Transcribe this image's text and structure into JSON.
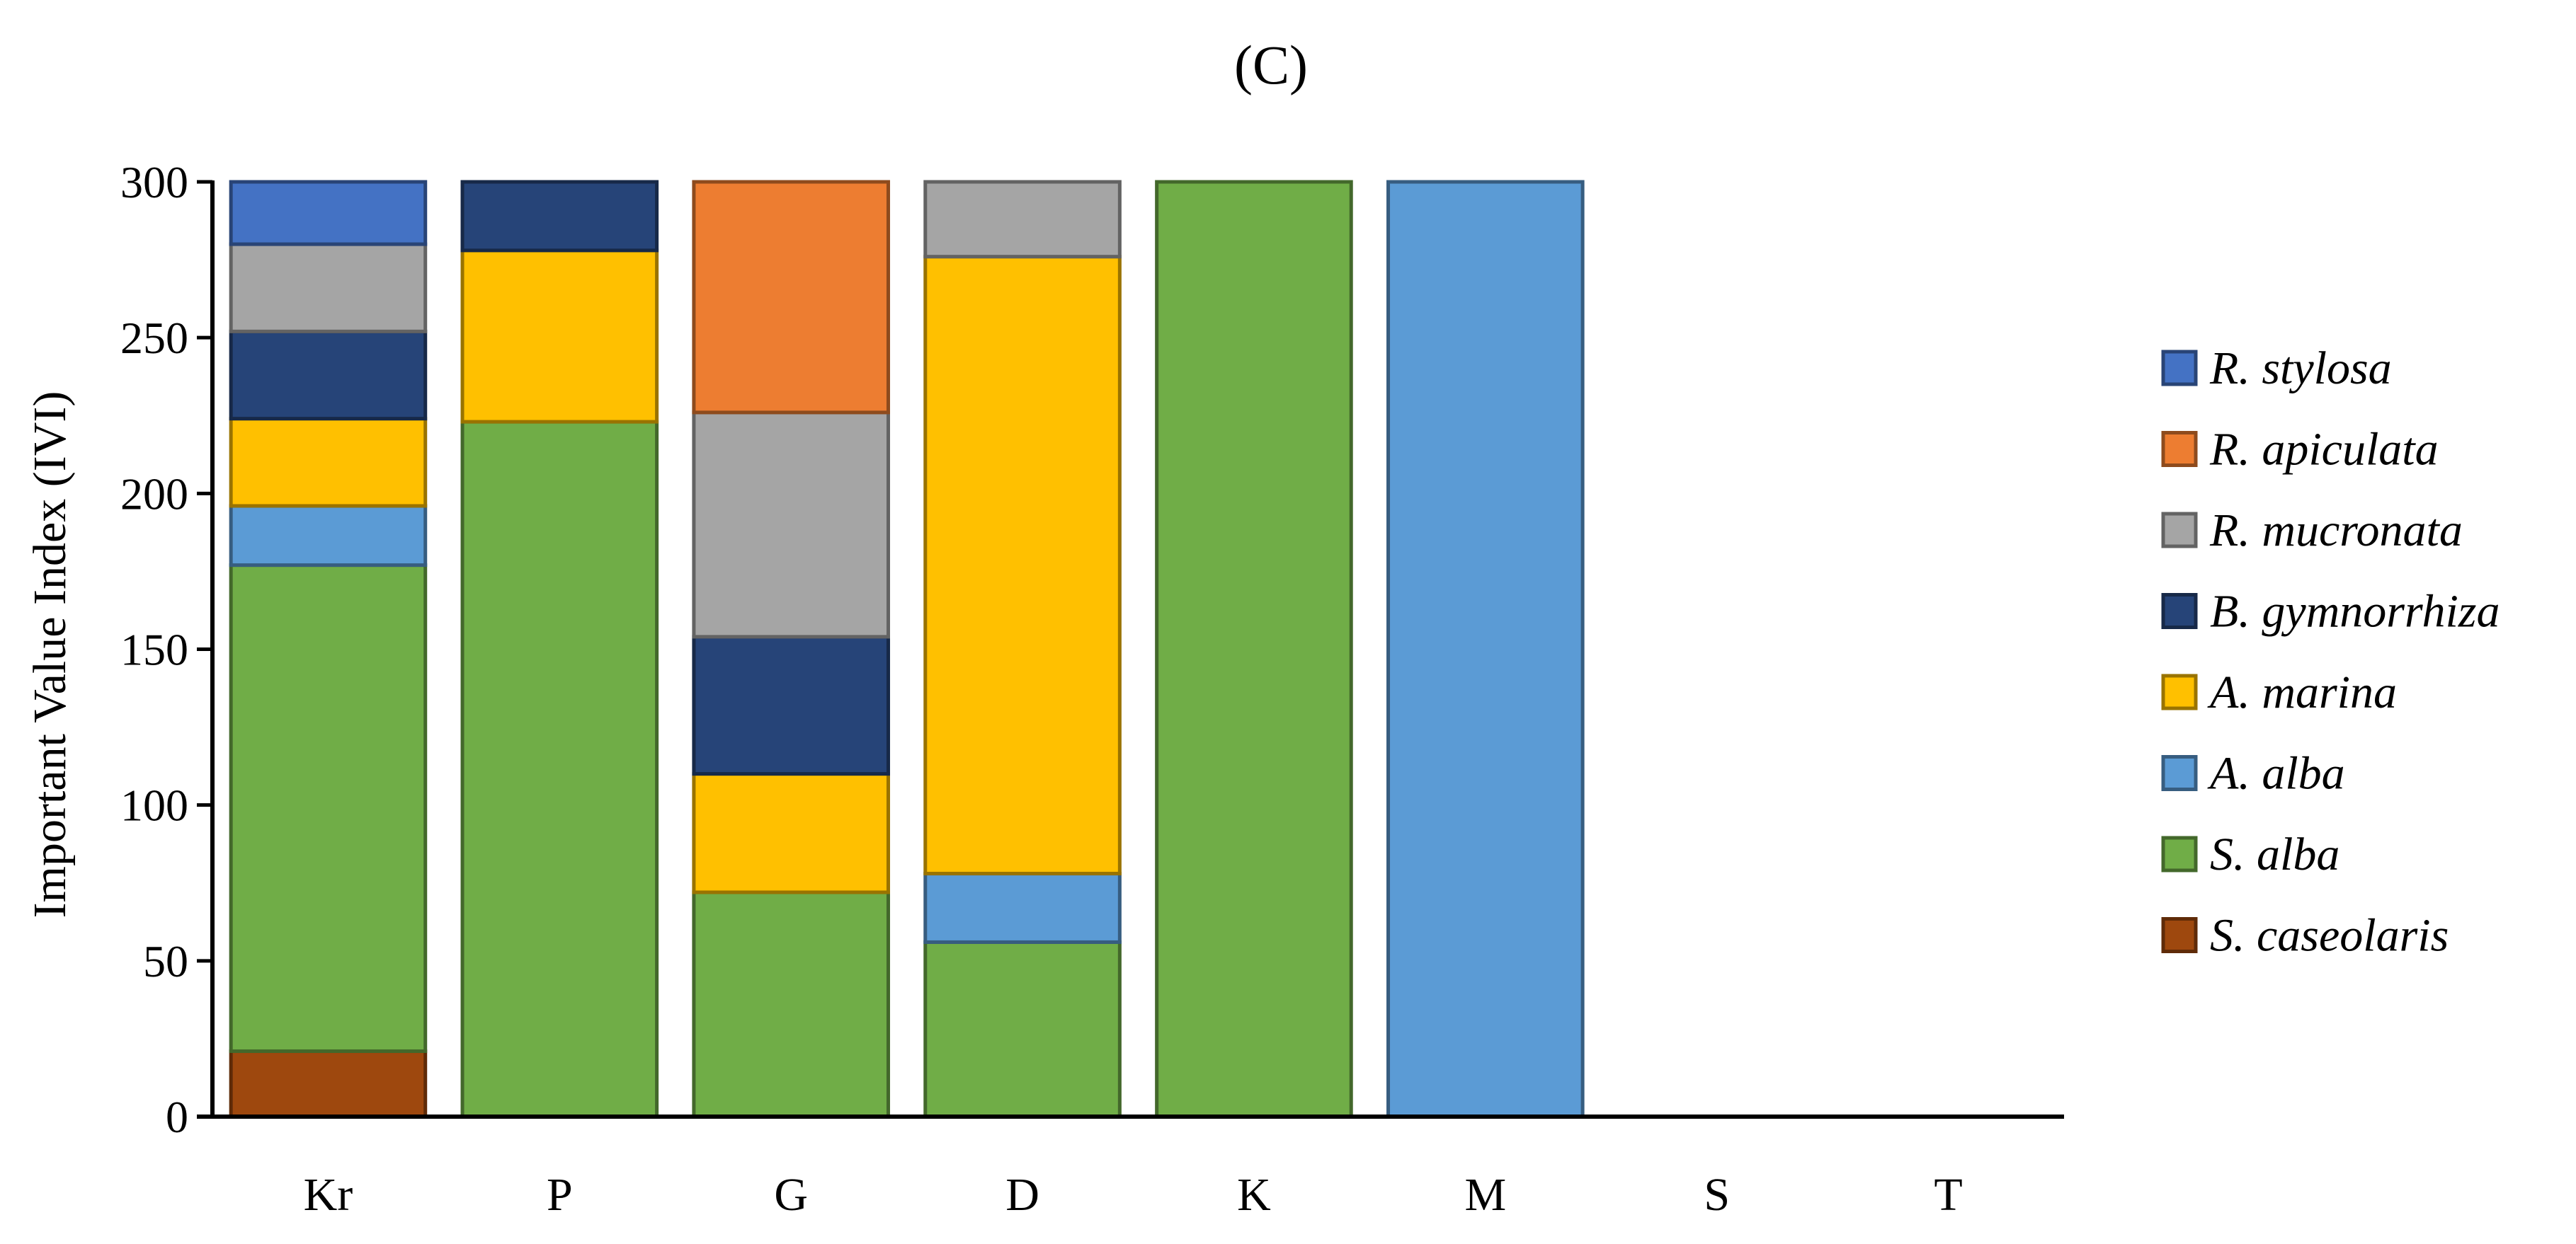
{
  "chart_data": {
    "type": "bar",
    "stacked": true,
    "title": "(C)",
    "xlabel": "",
    "ylabel": "Important Value Index (IVI)",
    "ylim": [
      0,
      300
    ],
    "yticks": [
      "0",
      "50",
      "100",
      "150",
      "200",
      "250",
      "300"
    ],
    "categories": [
      "Kr",
      "P",
      "G",
      "D",
      "K",
      "M",
      "S",
      "T"
    ],
    "grid": false,
    "legend_position": "right",
    "series": [
      {
        "name": "S. caseolaris",
        "color": "#9E480E",
        "values": [
          21,
          0,
          0,
          0,
          0,
          0,
          0,
          0
        ]
      },
      {
        "name": "S. alba",
        "color": "#70AD47",
        "values": [
          156,
          223,
          72,
          56,
          300,
          0,
          0,
          0
        ]
      },
      {
        "name": "A. alba",
        "color": "#5B9BD5",
        "values": [
          19,
          0,
          0,
          22,
          0,
          300,
          0,
          0
        ]
      },
      {
        "name": "A. marina",
        "color": "#FFC000",
        "values": [
          28,
          55,
          38,
          198,
          0,
          0,
          0,
          0
        ]
      },
      {
        "name": "B. gymnorrhiza",
        "color": "#264478",
        "values": [
          28,
          22,
          44,
          0,
          0,
          0,
          0,
          0
        ]
      },
      {
        "name": "R. mucronata",
        "color": "#A5A5A5",
        "values": [
          28,
          0,
          72,
          24,
          0,
          0,
          0,
          0
        ]
      },
      {
        "name": "R. apiculata",
        "color": "#ED7D31",
        "values": [
          0,
          0,
          74,
          0,
          0,
          0,
          0,
          0
        ]
      },
      {
        "name": "R. stylosa",
        "color": "#4472C4",
        "values": [
          20,
          0,
          0,
          0,
          0,
          0,
          0,
          0
        ]
      }
    ],
    "legend_order": [
      "R. stylosa",
      "R. apiculata",
      "R. mucronata",
      "B. gymnorrhiza",
      "A. marina",
      "A. alba",
      "S. alba",
      "S. caseolaris"
    ]
  }
}
